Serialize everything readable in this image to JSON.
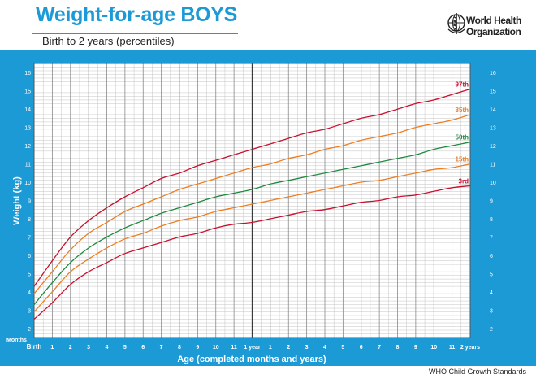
{
  "header": {
    "title": "Weight-for-age BOYS",
    "subtitle": "Birth to 2 years (percentiles)"
  },
  "who_logo": {
    "line1": "World Health",
    "line2": "Organization",
    "icon": "who-emblem-icon"
  },
  "footer": {
    "text": "WHO Child Growth Standards"
  },
  "colors": {
    "brand_blue": "#1c9ad6",
    "p97": "#c8102e",
    "p85": "#ef7d22",
    "p50": "#1d8a3e",
    "p15": "#ef7d22",
    "p3": "#c8102e"
  },
  "chart_data": {
    "type": "line",
    "title": "Weight-for-age BOYS",
    "subtitle": "Birth to 2 years (percentiles)",
    "xlabel": "Age (completed months and years)",
    "ylabel": "Weight (kg)",
    "months_label": "Months",
    "xlim": [
      0,
      24
    ],
    "ylim": [
      1.5,
      16.5
    ],
    "y_ticks": [
      "2",
      "3",
      "4",
      "5",
      "6",
      "7",
      "8",
      "9",
      "10",
      "11",
      "12",
      "13",
      "14",
      "15",
      "16"
    ],
    "x_tick_labels": [
      "Birth",
      "1",
      "2",
      "3",
      "4",
      "5",
      "6",
      "7",
      "8",
      "9",
      "10",
      "11",
      "1 year",
      "1",
      "2",
      "3",
      "4",
      "5",
      "6",
      "7",
      "8",
      "9",
      "10",
      "11",
      "2 years"
    ],
    "grid": true,
    "x": [
      0,
      1,
      2,
      3,
      4,
      5,
      6,
      7,
      8,
      9,
      10,
      11,
      12,
      13,
      14,
      15,
      16,
      17,
      18,
      19,
      20,
      21,
      22,
      23,
      24
    ],
    "series": [
      {
        "name": "97th",
        "color": "#c8102e",
        "values": [
          4.3,
          5.7,
          7.0,
          7.9,
          8.6,
          9.2,
          9.7,
          10.2,
          10.5,
          10.9,
          11.2,
          11.5,
          11.8,
          12.1,
          12.4,
          12.7,
          12.9,
          13.2,
          13.5,
          13.7,
          14.0,
          14.3,
          14.5,
          14.8,
          15.1
        ]
      },
      {
        "name": "85th",
        "color": "#ef7d22",
        "values": [
          3.9,
          5.1,
          6.3,
          7.2,
          7.8,
          8.4,
          8.8,
          9.2,
          9.6,
          9.9,
          10.2,
          10.5,
          10.8,
          11.0,
          11.3,
          11.5,
          11.8,
          12.0,
          12.3,
          12.5,
          12.7,
          13.0,
          13.2,
          13.4,
          13.7
        ]
      },
      {
        "name": "50th",
        "color": "#1d8a3e",
        "values": [
          3.3,
          4.5,
          5.6,
          6.4,
          7.0,
          7.5,
          7.9,
          8.3,
          8.6,
          8.9,
          9.2,
          9.4,
          9.6,
          9.9,
          10.1,
          10.3,
          10.5,
          10.7,
          10.9,
          11.1,
          11.3,
          11.5,
          11.8,
          12.0,
          12.2
        ]
      },
      {
        "name": "15th",
        "color": "#ef7d22",
        "values": [
          2.9,
          4.0,
          5.1,
          5.8,
          6.4,
          6.9,
          7.2,
          7.6,
          7.9,
          8.1,
          8.4,
          8.6,
          8.8,
          9.0,
          9.2,
          9.4,
          9.6,
          9.8,
          10.0,
          10.1,
          10.3,
          10.5,
          10.7,
          10.8,
          11.0
        ]
      },
      {
        "name": "3rd",
        "color": "#c8102e",
        "values": [
          2.5,
          3.4,
          4.4,
          5.1,
          5.6,
          6.1,
          6.4,
          6.7,
          7.0,
          7.2,
          7.5,
          7.7,
          7.8,
          8.0,
          8.2,
          8.4,
          8.5,
          8.7,
          8.9,
          9.0,
          9.2,
          9.3,
          9.5,
          9.7,
          9.8
        ]
      }
    ]
  }
}
